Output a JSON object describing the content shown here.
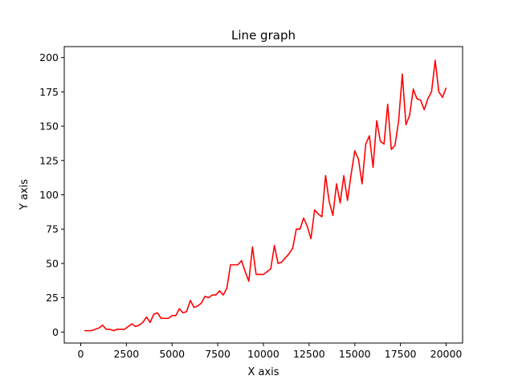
{
  "chart_data": {
    "type": "line",
    "title": "Line graph",
    "xlabel": "X axis",
    "ylabel": "Y axis",
    "xlim": [
      -900,
      20900
    ],
    "ylim": [
      -8,
      208
    ],
    "xticks": [
      0,
      2500,
      5000,
      7500,
      10000,
      12500,
      15000,
      17500,
      20000
    ],
    "yticks": [
      0,
      25,
      50,
      75,
      100,
      125,
      150,
      175,
      200
    ],
    "grid": false,
    "line_color": "#ff0000",
    "series": [
      {
        "x": [
          200,
          400,
          600,
          800,
          1000,
          1200,
          1400,
          1600,
          1800,
          2000,
          2200,
          2400,
          2600,
          2800,
          3000,
          3200,
          3400,
          3600,
          3800,
          4000,
          4200,
          4400,
          4600,
          4800,
          5000,
          5200,
          5400,
          5600,
          5800,
          6000,
          6200,
          6400,
          6600,
          6800,
          7000,
          7200,
          7400,
          7600,
          7800,
          8000,
          8200,
          8400,
          8600,
          8800,
          9000,
          9200,
          9400,
          9600,
          9800,
          10000,
          10200,
          10400,
          10600,
          10800,
          11000,
          11200,
          11400,
          11600,
          11800,
          12000,
          12200,
          12400,
          12600,
          12800,
          13000,
          13200,
          13400,
          13600,
          13800,
          14000,
          14200,
          14400,
          14600,
          14800,
          15000,
          15200,
          15400,
          15600,
          15800,
          16000,
          16200,
          16400,
          16600,
          16800,
          17000,
          17200,
          17400,
          17600,
          17800,
          18000,
          18200,
          18400,
          18600,
          18800,
          19000,
          19200,
          19400,
          19600,
          19800,
          20000
        ],
        "values": [
          1,
          1,
          1,
          2,
          3,
          5,
          2,
          2,
          1,
          2,
          2,
          2,
          4,
          6,
          4,
          5,
          7,
          11,
          7,
          13,
          14,
          10,
          10,
          10,
          12,
          12,
          17,
          14,
          15,
          23,
          18,
          19,
          21,
          26,
          25,
          27,
          27,
          30,
          27,
          32,
          49,
          49,
          49,
          52,
          44,
          37,
          62,
          42,
          42,
          42,
          44,
          46,
          63,
          50,
          51,
          54,
          57,
          61,
          75,
          75,
          83,
          77,
          68,
          89,
          86,
          84,
          114,
          95,
          85,
          108,
          94,
          114,
          96,
          115,
          132,
          126,
          108,
          137,
          143,
          120,
          154,
          139,
          137,
          166,
          133,
          136,
          154,
          188,
          151,
          158,
          177,
          170,
          169,
          162,
          170,
          175,
          198,
          175,
          171,
          178
        ]
      }
    ]
  }
}
